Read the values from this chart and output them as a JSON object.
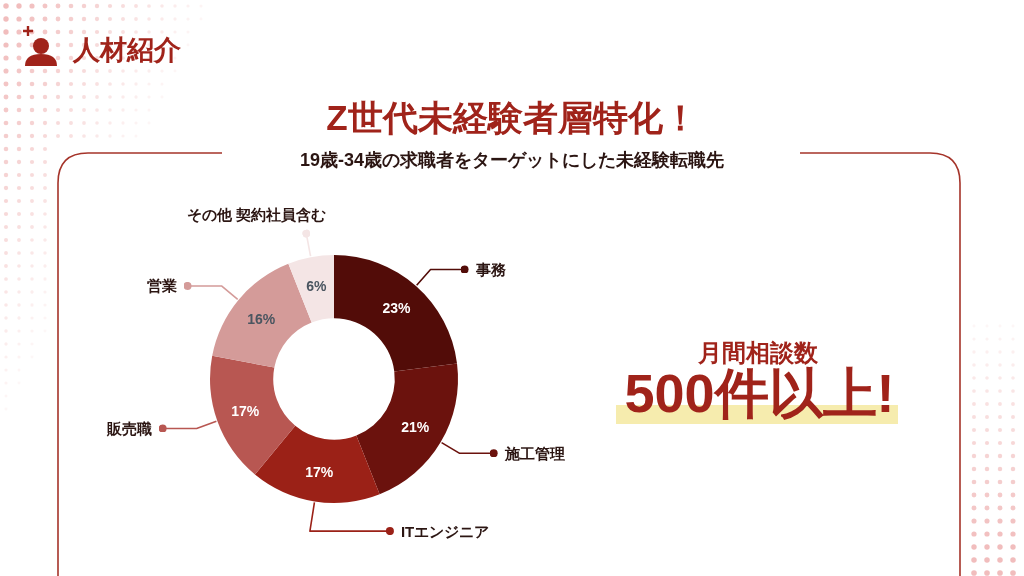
{
  "chart_data": {
    "type": "donut",
    "title": "Z世代未経験者層特化！",
    "subtitle": "19歳-34歳の求職者をターゲットにした未経験転職先",
    "categories": [
      "事務",
      "施工管理",
      "ITエンジニア",
      "販売職",
      "営業",
      "その他 契約社員含む"
    ],
    "values": [
      23,
      21,
      17,
      17,
      16,
      6
    ],
    "colors": [
      "#520c08",
      "#6b120d",
      "#9b2117",
      "#b85752",
      "#d49b99",
      "#f4e5e5"
    ],
    "value_labels": [
      "23%",
      "21%",
      "17%",
      "17%",
      "16%",
      "6%"
    ],
    "annotations": [
      "人材紹介",
      "月間相談数",
      "500件以上!"
    ]
  }
}
